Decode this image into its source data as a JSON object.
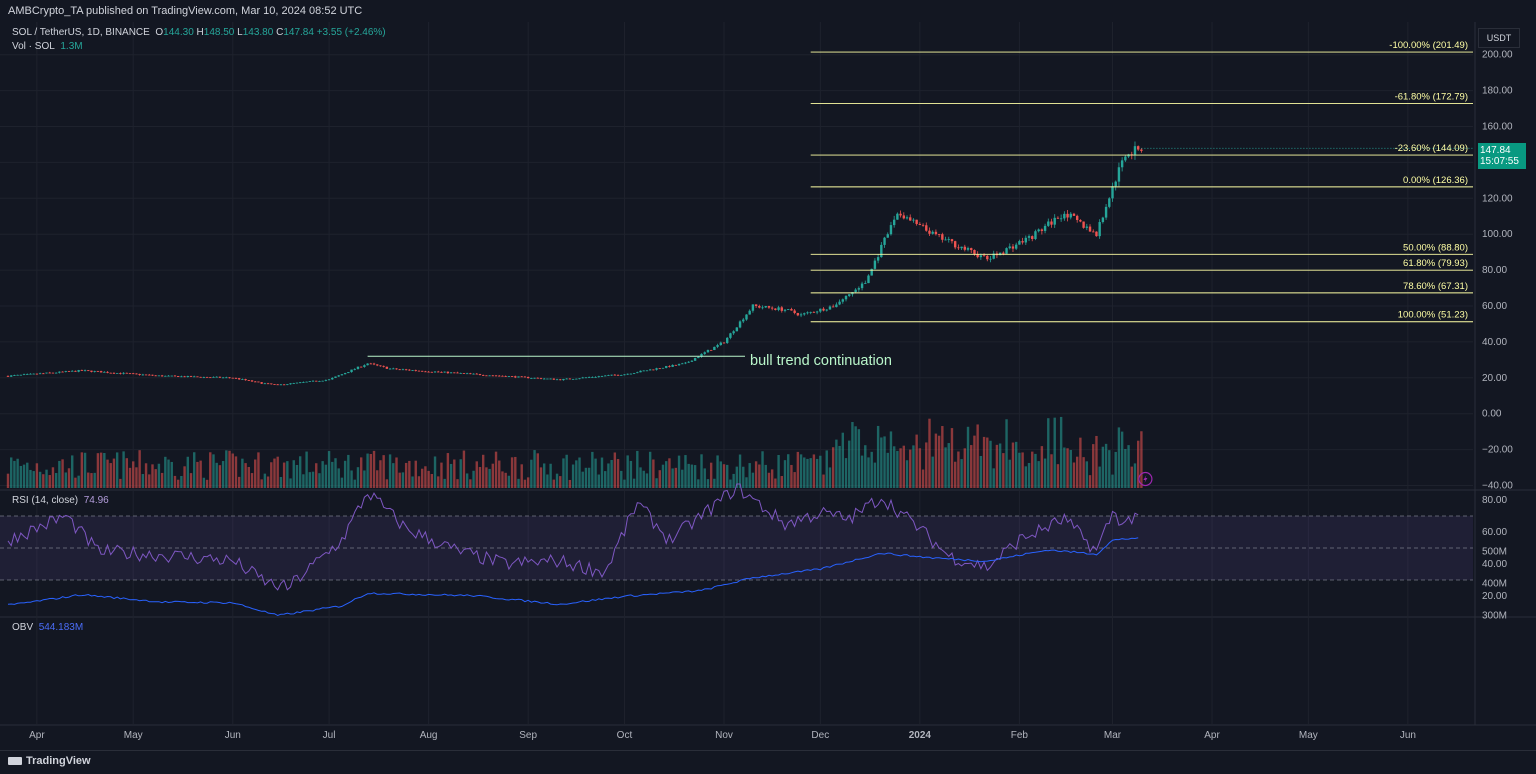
{
  "header": {
    "published": "AMBCrypto_TA published on TradingView.com, Mar 10, 2024 08:52 UTC"
  },
  "legend": {
    "symbol": "SOL / TetherUS, 1D, BINANCE",
    "ohlc_o_label": "O",
    "ohlc_o": "144.30",
    "ohlc_h_label": "H",
    "ohlc_h": "148.50",
    "ohlc_l_label": "L",
    "ohlc_l": "143.80",
    "ohlc_c_label": "C",
    "ohlc_c": "147.84",
    "change": "+3.55 (+2.46%)",
    "vol_label": "Vol · SOL",
    "vol_value": "1.3M"
  },
  "rsi_legend": {
    "label": "RSI (14, close)",
    "value": "74.96"
  },
  "obv_legend": {
    "label": "OBV",
    "value": "544.183M"
  },
  "currency": "USDT",
  "last_price": {
    "price": "147.84",
    "countdown": "15:07:55"
  },
  "annotation": "bull trend continuation",
  "footer": {
    "brand": "TradingView"
  },
  "colors": {
    "background": "#131722",
    "up": "#26a69a",
    "down": "#ef5350",
    "fib": "#ffffa5",
    "rsi": "#7e57c2",
    "obv": "#2962ff",
    "annotation": "#b9f6ca"
  },
  "chart_data": [
    {
      "type": "candlestick",
      "title": "SOL / TetherUS, 1D, BINANCE",
      "ylabel": "USDT",
      "ylim": [
        -40,
        220
      ],
      "y_ticks": [
        "200.00",
        "180.00",
        "160.00",
        "140.00",
        "120.00",
        "100.00",
        "80.00",
        "60.00",
        "40.00",
        "20.00",
        "0.00",
        "−20.00",
        "−40.00"
      ],
      "x_ticks": [
        "Apr",
        "May",
        "Jun",
        "Jul",
        "Aug",
        "Sep",
        "Oct",
        "Nov",
        "Dec",
        "2024",
        "Feb",
        "Mar",
        "Apr",
        "May",
        "Jun"
      ],
      "close_path": {
        "x": [
          "2023-03-23",
          "2023-04-15",
          "2023-05-10",
          "2023-06-01",
          "2023-06-10",
          "2023-06-15",
          "2023-07-01",
          "2023-07-13",
          "2023-07-20",
          "2023-08-15",
          "2023-09-11",
          "2023-10-01",
          "2023-10-20",
          "2023-11-01",
          "2023-11-10",
          "2023-11-20",
          "2023-11-25",
          "2023-12-05",
          "2023-12-15",
          "2023-12-25",
          "2024-01-05",
          "2024-01-22",
          "2024-02-05",
          "2024-02-15",
          "2024-02-25",
          "2024-03-01",
          "2024-03-05",
          "2024-03-10"
        ],
        "y": [
          21,
          24,
          21,
          20,
          17,
          16,
          19,
          28,
          25,
          22,
          19,
          22,
          28,
          40,
          60,
          58,
          55,
          60,
          73,
          112,
          100,
          86,
          99,
          112,
          100,
          126,
          145,
          147.84
        ]
      },
      "fib_levels": [
        {
          "label": "-100.00% (201.49)",
          "value": 201.49
        },
        {
          "label": "-61.80% (172.79)",
          "value": 172.79
        },
        {
          "label": "-23.60% (144.09)",
          "value": 144.09
        },
        {
          "label": "0.00% (126.36)",
          "value": 126.36
        },
        {
          "label": "50.00% (88.80)",
          "value": 88.8
        },
        {
          "label": "61.80% (79.93)",
          "value": 79.93
        },
        {
          "label": "78.60% (67.31)",
          "value": 67.31
        },
        {
          "label": "100.00% (51.23)",
          "value": 51.23
        }
      ],
      "breakout_level": 32,
      "annotations": [
        "bull trend continuation"
      ]
    },
    {
      "type": "line",
      "name": "RSI (14, close)",
      "ylim": [
        15,
        88
      ],
      "y_ticks": [
        "80.00",
        "60.00",
        "40.00",
        "20.00"
      ],
      "bands": [
        70,
        30
      ],
      "x": [
        "2023-03-23",
        "2023-04-10",
        "2023-04-20",
        "2023-05-15",
        "2023-06-01",
        "2023-06-12",
        "2023-06-18",
        "2023-07-05",
        "2023-07-13",
        "2023-07-25",
        "2023-08-10",
        "2023-08-25",
        "2023-09-10",
        "2023-09-25",
        "2023-10-05",
        "2023-10-15",
        "2023-10-25",
        "2023-11-05",
        "2023-11-20",
        "2023-12-01",
        "2023-12-10",
        "2023-12-20",
        "2024-01-01",
        "2024-01-10",
        "2024-01-22",
        "2024-02-01",
        "2024-02-15",
        "2024-02-25",
        "2024-03-01",
        "2024-03-05",
        "2024-03-10"
      ],
      "y": [
        55,
        70,
        48,
        45,
        42,
        28,
        25,
        55,
        85,
        62,
        48,
        40,
        42,
        35,
        78,
        55,
        70,
        88,
        65,
        72,
        68,
        82,
        62,
        45,
        38,
        55,
        68,
        48,
        72,
        65,
        74.96
      ]
    },
    {
      "type": "line",
      "name": "OBV",
      "ylim": [
        280,
        560
      ],
      "y_ticks": [
        "500M",
        "400M",
        "300M"
      ],
      "x": [
        "2023-03-23",
        "2023-04-15",
        "2023-05-10",
        "2023-06-01",
        "2023-06-15",
        "2023-07-05",
        "2023-07-13",
        "2023-08-15",
        "2023-09-11",
        "2023-10-01",
        "2023-10-25",
        "2023-11-10",
        "2023-12-01",
        "2023-12-20",
        "2024-01-05",
        "2024-01-22",
        "2024-02-10",
        "2024-02-25",
        "2024-03-01",
        "2024-03-10"
      ],
      "y": [
        332,
        365,
        342,
        340,
        300,
        330,
        370,
        362,
        335,
        360,
        378,
        418,
        445,
        495,
        480,
        470,
        505,
        492,
        535,
        544.183
      ]
    }
  ]
}
